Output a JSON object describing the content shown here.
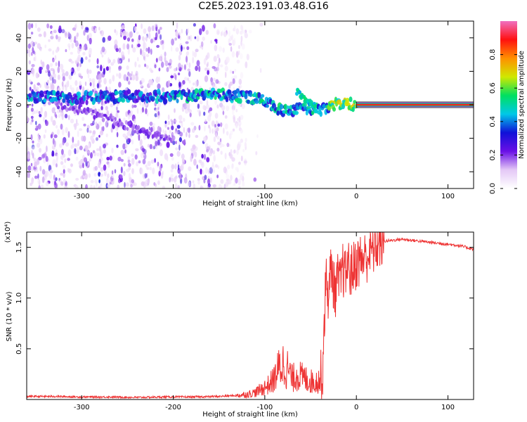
{
  "figure": {
    "title": "C2E5.2023.191.03.48.G16"
  },
  "chart_data": [
    {
      "type": "heatmap",
      "title": "C2E5.2023.191.03.48.G16",
      "xlabel": "Height of straight line (km)",
      "ylabel": "Frequency (Hz)",
      "xlim": [
        -360,
        128
      ],
      "ylim": [
        -50,
        50
      ],
      "x_ticks": [
        -300,
        -200,
        -100,
        0,
        100
      ],
      "y_ticks": [
        40,
        20,
        0,
        -20,
        -40
      ],
      "colorbar": {
        "label": "Normalized spectral amplitude",
        "range": [
          0,
          1
        ],
        "ticks": [
          0.0,
          0.2,
          0.4,
          0.6,
          0.8
        ],
        "colormap": [
          "#ffffff",
          "#e4c8f6",
          "#6a10e6",
          "#1010d8",
          "#00c8e8",
          "#00e060",
          "#d0e800",
          "#ff9000",
          "#ff1010",
          "#f070c0"
        ]
      },
      "features": [
        {
          "name": "noise-field",
          "x_range": [
            -360,
            -120
          ],
          "y_range": [
            -50,
            48
          ],
          "amplitude": 0.1
        },
        {
          "name": "main-track",
          "points": [
            [
              -360,
              5
            ],
            [
              -300,
              4
            ],
            [
              -250,
              5
            ],
            [
              -200,
              5
            ],
            [
              -150,
              6
            ],
            [
              -120,
              5
            ],
            [
              -100,
              2
            ],
            [
              -80,
              -4
            ],
            [
              -60,
              -2
            ],
            [
              -40,
              -3
            ],
            [
              -20,
              1
            ],
            [
              0,
              0
            ]
          ],
          "amplitude": 0.35
        },
        {
          "name": "descending-track",
          "points": [
            [
              -340,
              3
            ],
            [
              -300,
              -3
            ],
            [
              -250,
              -12
            ],
            [
              -200,
              -22
            ]
          ],
          "amplitude": 0.15
        },
        {
          "name": "secondary-track",
          "points": [
            [
              -65,
              8
            ],
            [
              -55,
              3
            ],
            [
              -45,
              -1
            ]
          ],
          "amplitude": 0.4
        },
        {
          "name": "constant-line",
          "x_range": [
            0,
            128
          ],
          "y": 0,
          "amplitude": 0.9
        }
      ]
    },
    {
      "type": "line",
      "xlabel": "Height of straight line (km)",
      "ylabel": "SNR (10 * v/v)",
      "y_multiplier": "(x10⁴)",
      "xlim": [
        -360,
        128
      ],
      "ylim": [
        0,
        1.65
      ],
      "x_ticks": [
        -300,
        -200,
        -100,
        0,
        100
      ],
      "y_ticks": [
        0.5,
        1.0,
        1.5
      ],
      "y_tick_labels": [
        "0.5",
        "1.0",
        "1.5"
      ],
      "color": "#ee3333",
      "series": [
        {
          "x": [
            -360,
            -330,
            -300,
            -270,
            -240,
            -210,
            -180,
            -150,
            -130,
            -120,
            -110,
            -100,
            -95,
            -90,
            -85,
            -80,
            -75,
            -70,
            -65,
            -60,
            -55,
            -50,
            -45,
            -40,
            -37,
            -35,
            -33,
            -30,
            -28,
            -26,
            -24,
            -22,
            -20,
            -18,
            -15,
            -12,
            -10,
            -6,
            -3,
            0,
            5,
            10,
            15,
            20,
            25,
            30,
            40,
            50,
            60,
            70,
            80,
            90,
            100,
            110,
            120,
            128
          ],
          "y": [
            0.03,
            0.03,
            0.025,
            0.025,
            0.02,
            0.025,
            0.025,
            0.03,
            0.04,
            0.05,
            0.07,
            0.12,
            0.15,
            0.2,
            0.3,
            0.35,
            0.3,
            0.2,
            0.25,
            0.22,
            0.2,
            0.18,
            0.17,
            0.2,
            0.25,
            0.8,
            1.2,
            1.0,
            1.3,
            1.25,
            1.05,
            1.1,
            1.2,
            1.1,
            1.3,
            1.2,
            1.35,
            1.25,
            1.3,
            1.35,
            1.38,
            1.4,
            1.45,
            1.5,
            1.55,
            1.56,
            1.57,
            1.58,
            1.57,
            1.56,
            1.55,
            1.54,
            1.53,
            1.52,
            1.5,
            1.48
          ]
        }
      ]
    }
  ]
}
